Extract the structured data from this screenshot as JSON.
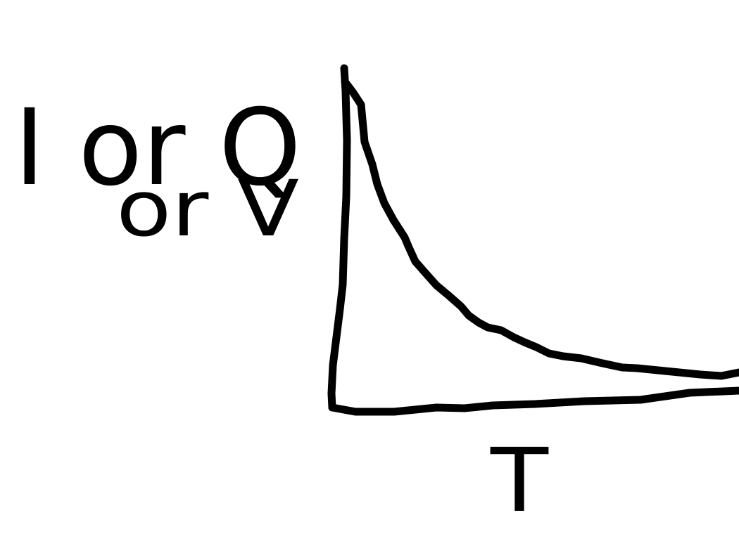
{
  "diagram": {
    "y_axis_label": {
      "line1": "I or Q",
      "line2": "or V"
    },
    "x_axis_label": "T",
    "curve": "decay",
    "ink_color": "#000000",
    "background_color": "#ffffff"
  }
}
